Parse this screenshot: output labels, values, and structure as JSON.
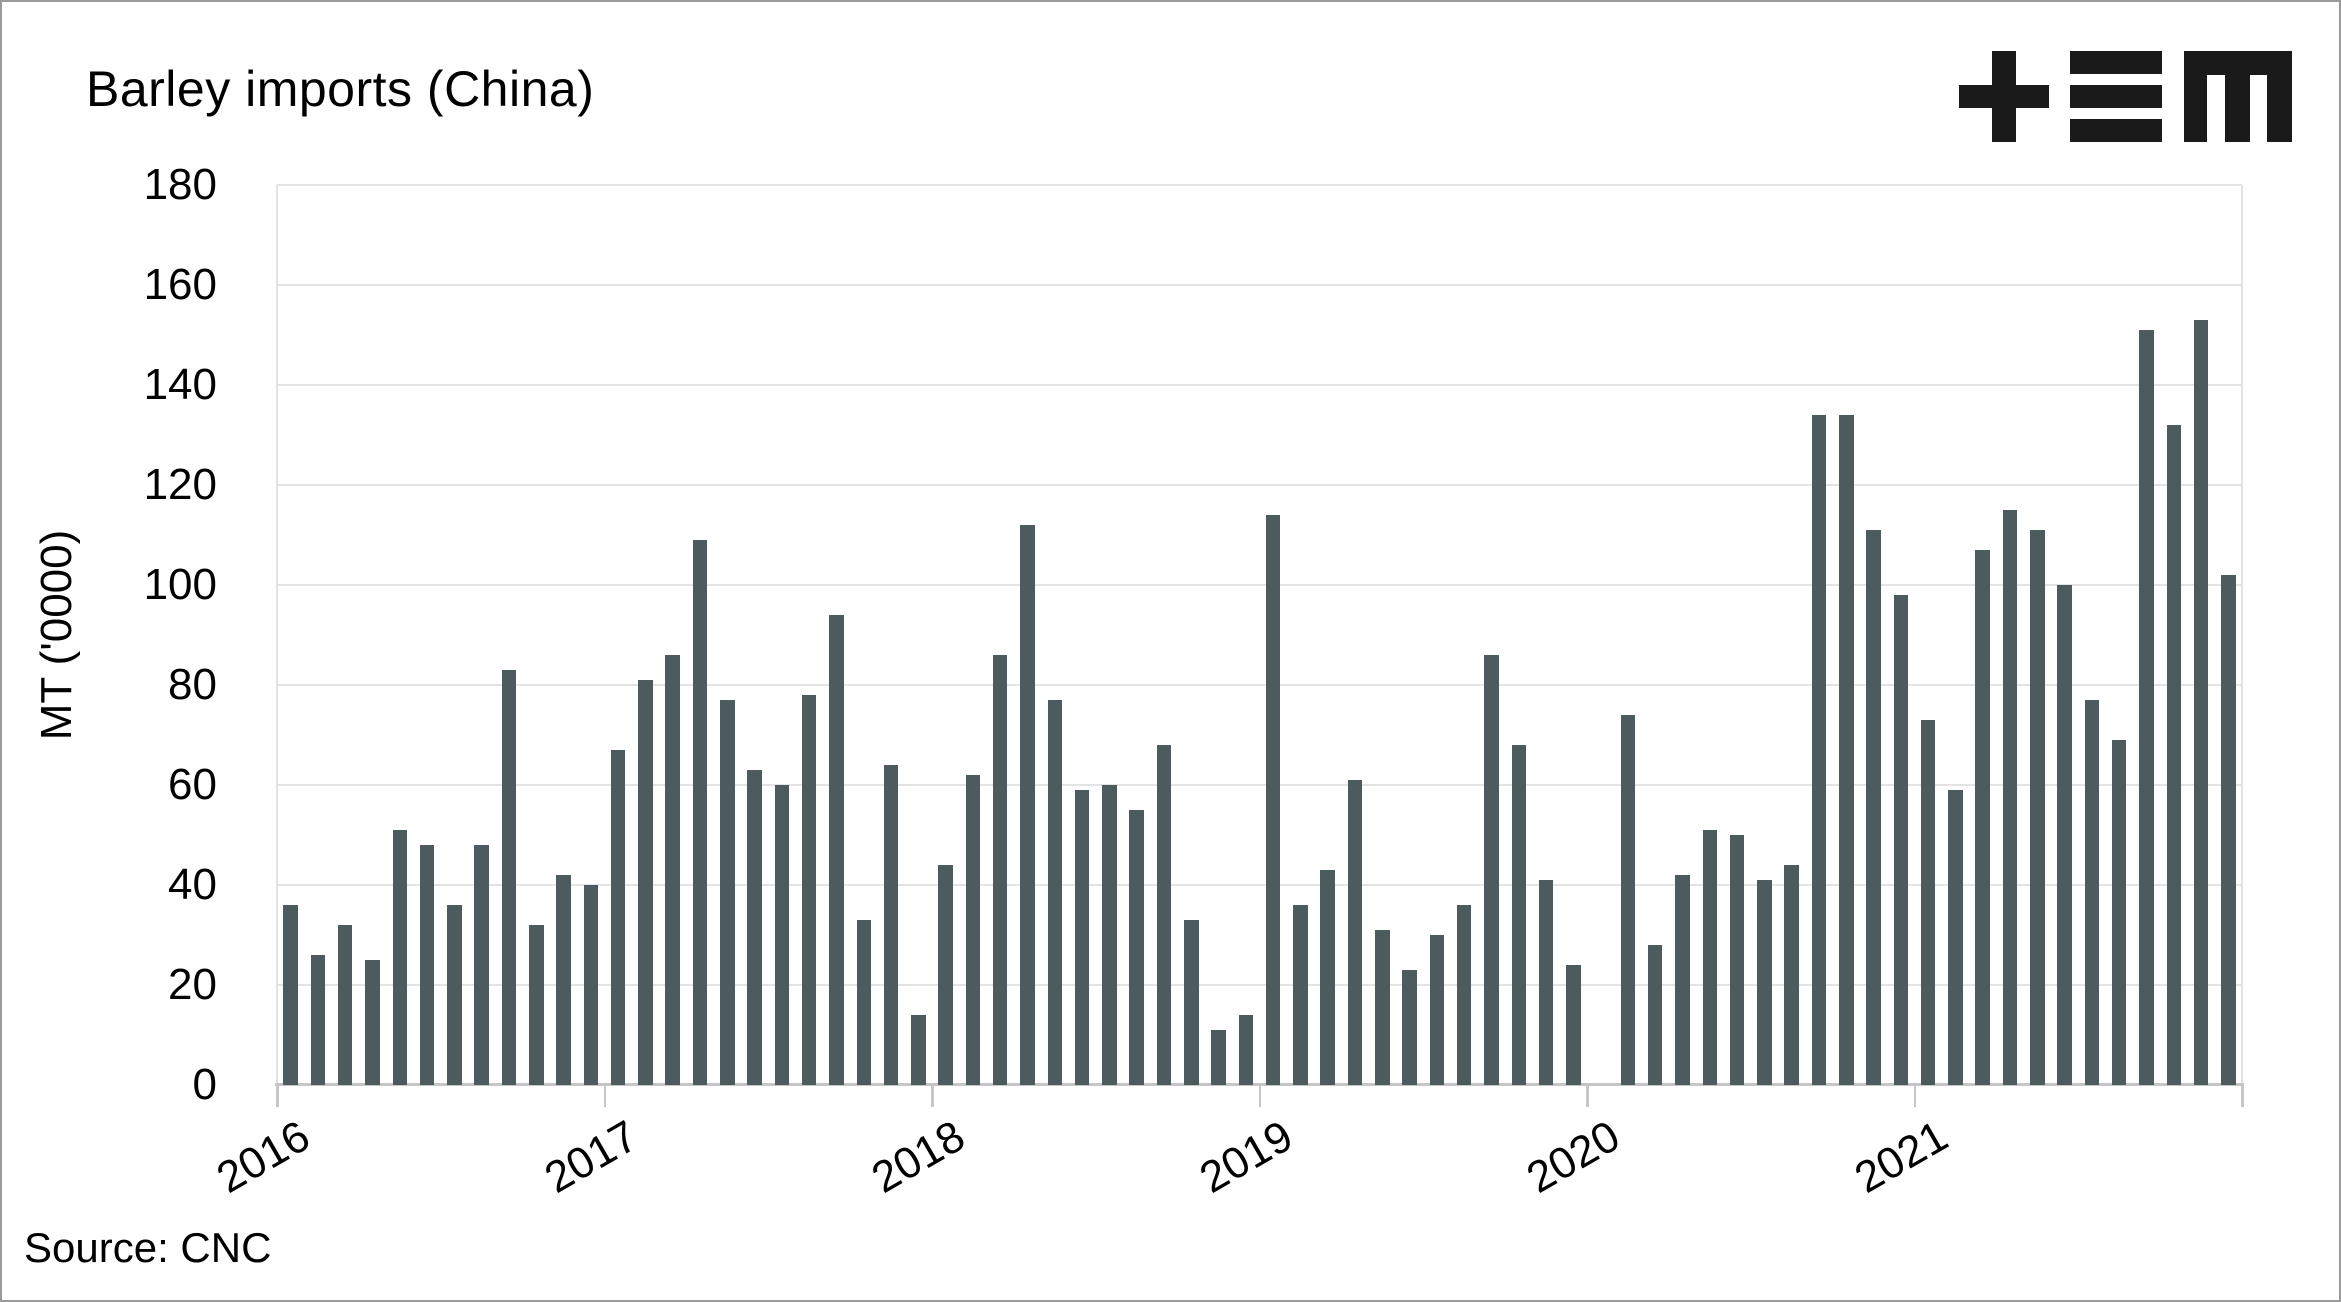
{
  "title": "Barley imports (China)",
  "source_note": "Source: CNC",
  "colors": {
    "bar": "#4b5b5e",
    "gridline": "#e3e3e3",
    "axis": "#c6c6c6",
    "text": "#000000",
    "logo": "#1a1a1a",
    "background": "#ffffff"
  },
  "logo": {
    "icon": "plus-triplebar-m-logo"
  },
  "chart_data": {
    "type": "bar",
    "title": "Barley imports (China)",
    "xlabel": "",
    "ylabel": "MT ('0000)",
    "ylim": [
      0,
      180
    ],
    "yticks": [
      0,
      20,
      40,
      60,
      80,
      100,
      120,
      140,
      160,
      180
    ],
    "grid": true,
    "legend_position": "none",
    "x_frequency": "monthly",
    "x_start": "2016-01",
    "x_tick_labels": [
      "2016",
      "2017",
      "2018",
      "2019",
      "2020",
      "2021"
    ],
    "note": "null value = no bar shown (Jan 2020 missing)",
    "series": [
      {
        "name": "Barley imports",
        "values_by_year": {
          "2016": [
            36,
            26,
            32,
            25,
            51,
            48,
            36,
            48,
            83,
            32,
            42,
            40
          ],
          "2017": [
            67,
            81,
            86,
            109,
            77,
            63,
            60,
            78,
            94,
            33,
            64,
            14
          ],
          "2018": [
            44,
            62,
            86,
            112,
            77,
            59,
            60,
            55,
            68,
            33,
            11,
            14
          ],
          "2019": [
            114,
            36,
            43,
            61,
            31,
            23,
            30,
            36,
            86,
            68,
            41,
            24
          ],
          "2020": [
            null,
            74,
            28,
            42,
            51,
            50,
            41,
            44,
            134,
            134,
            111,
            98
          ],
          "2021": [
            73,
            59,
            107,
            115,
            111,
            100,
            77,
            69,
            151,
            132,
            153,
            102
          ]
        }
      }
    ]
  }
}
